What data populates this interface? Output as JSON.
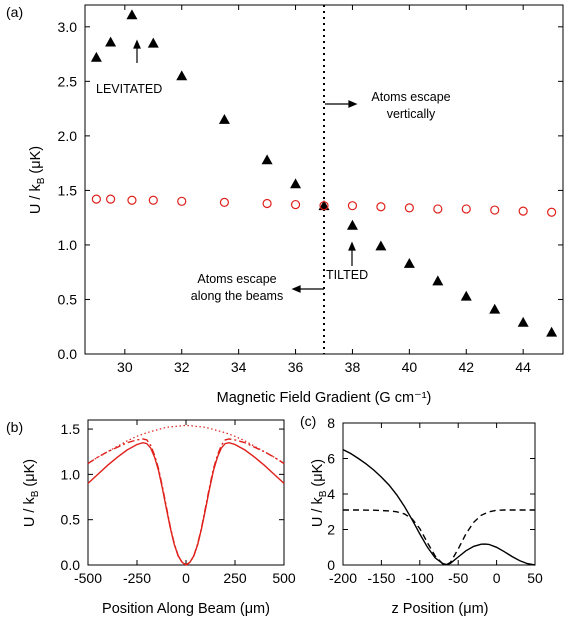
{
  "colors": {
    "triangle": "#000000",
    "circle": "#e0201b",
    "curve": "#e0201b",
    "black": "#000000"
  },
  "chart_data": [
    {
      "panel": "(a)",
      "type": "scatter",
      "xlabel": "Magnetic Field Gradient (G cm⁻¹)",
      "ylabel_main": "U / k",
      "ylabel_sub": "B",
      "ylabel_unit": " (μK)",
      "xlim": [
        28.6,
        45.4
      ],
      "ylim": [
        0,
        3.2
      ],
      "xticks": [
        30,
        32,
        34,
        36,
        38,
        40,
        42,
        44
      ],
      "xtick_labels": [
        "30",
        "32",
        "34",
        "36",
        "38",
        "40",
        "42",
        "44"
      ],
      "yticks": [
        0,
        0.5,
        1,
        1.5,
        2,
        2.5,
        3
      ],
      "ytick_labels": [
        "0.0",
        "0.5",
        "1.0",
        "1.5",
        "2.0",
        "2.5",
        "3.0"
      ],
      "vline_x": 37,
      "series": [
        {
          "marker": "triangle",
          "x": [
            29,
            29.5,
            30.25,
            31,
            32,
            33.5,
            35,
            36,
            37,
            38,
            39,
            40,
            41,
            42,
            43,
            44,
            45
          ],
          "y": [
            2.72,
            2.86,
            3.11,
            2.85,
            2.55,
            2.15,
            1.78,
            1.56,
            1.36,
            1.18,
            0.99,
            0.83,
            0.67,
            0.53,
            0.41,
            0.29,
            0.2
          ]
        },
        {
          "marker": "open-circle",
          "x": [
            29,
            29.5,
            30.25,
            31,
            32,
            33.5,
            35,
            36,
            37,
            38,
            39,
            40,
            41,
            42,
            43,
            44,
            45
          ],
          "y": [
            1.42,
            1.42,
            1.41,
            1.41,
            1.4,
            1.39,
            1.38,
            1.37,
            1.36,
            1.36,
            1.35,
            1.34,
            1.33,
            1.33,
            1.32,
            1.31,
            1.3
          ]
        }
      ],
      "annotations": {
        "levitated": "LEVITATED",
        "tilted": "TILTED",
        "escape_vert_1": "Atoms escape",
        "escape_vert_2": "vertically",
        "escape_beam_1": "Atoms escape",
        "escape_beam_2": "along the beams"
      }
    },
    {
      "panel": "(b)",
      "type": "line",
      "xlabel": "Position Along Beam (μm)",
      "ylabel_main": "U / k",
      "ylabel_sub": "B",
      "ylabel_unit": " (μK)",
      "xlim": [
        -500,
        500
      ],
      "ylim": [
        0,
        1.6
      ],
      "xticks": [
        -500,
        -250,
        0,
        250,
        500
      ],
      "xtick_labels": [
        "-500",
        "-250",
        "0",
        "250",
        "500"
      ],
      "yticks": [
        0,
        0.5,
        1,
        1.5
      ],
      "ytick_labels": [
        "0.0",
        "0.5",
        "1.0",
        "1.5"
      ],
      "series": [
        {
          "style": "solid",
          "x": [
            -500,
            -450,
            -400,
            -350,
            -300,
            -250,
            -220,
            -200,
            -180,
            -160,
            -140,
            -120,
            -100,
            -80,
            -60,
            -40,
            -20,
            0,
            20,
            40,
            60,
            80,
            100,
            120,
            140,
            160,
            180,
            200,
            220,
            250,
            300,
            350,
            400,
            450,
            500
          ],
          "y": [
            0.9,
            1.0,
            1.1,
            1.19,
            1.27,
            1.33,
            1.35,
            1.34,
            1.29,
            1.19,
            1.04,
            0.84,
            0.62,
            0.41,
            0.23,
            0.1,
            0.03,
            0.0,
            0.03,
            0.1,
            0.23,
            0.41,
            0.62,
            0.84,
            1.04,
            1.19,
            1.29,
            1.34,
            1.35,
            1.33,
            1.27,
            1.19,
            1.1,
            1.0,
            0.9
          ]
        },
        {
          "style": "dashdot",
          "x": [
            -500,
            -450,
            -400,
            -350,
            -300,
            -250,
            -220,
            -200,
            -180,
            -160,
            -140,
            -120,
            -100,
            -80,
            -60,
            -40,
            -20,
            0,
            20,
            40,
            60,
            80,
            100,
            120,
            140,
            160,
            180,
            200,
            220,
            250,
            300,
            350,
            400,
            450,
            500
          ],
          "y": [
            1.12,
            1.19,
            1.25,
            1.3,
            1.35,
            1.38,
            1.39,
            1.38,
            1.32,
            1.21,
            1.06,
            0.86,
            0.64,
            0.42,
            0.24,
            0.1,
            0.03,
            0.0,
            0.03,
            0.1,
            0.24,
            0.42,
            0.64,
            0.86,
            1.06,
            1.21,
            1.32,
            1.38,
            1.39,
            1.38,
            1.35,
            1.3,
            1.25,
            1.19,
            1.12
          ]
        },
        {
          "style": "dotted",
          "x": [
            -500,
            -450,
            -400,
            -350,
            -300,
            -250,
            -200,
            -150,
            -100,
            -50,
            0,
            50,
            100,
            150,
            200,
            250,
            300,
            350,
            400,
            450,
            500
          ],
          "y": [
            1.12,
            1.19,
            1.25,
            1.31,
            1.37,
            1.42,
            1.46,
            1.49,
            1.52,
            1.53,
            1.54,
            1.53,
            1.52,
            1.49,
            1.46,
            1.42,
            1.37,
            1.31,
            1.25,
            1.19,
            1.12
          ]
        }
      ]
    },
    {
      "panel": "(c)",
      "type": "line",
      "xlabel": "z Position (μm)",
      "ylabel_main": "U / k",
      "ylabel_sub": "B",
      "ylabel_unit": " (μK)",
      "xlim": [
        -200,
        50
      ],
      "ylim": [
        0,
        8
      ],
      "xticks": [
        -200,
        -150,
        -100,
        -50,
        0,
        50
      ],
      "xtick_labels": [
        "-200",
        "-150",
        "-100",
        "-50",
        "0",
        "50"
      ],
      "yticks": [
        0,
        2,
        4,
        6,
        8
      ],
      "ytick_labels": [
        "0",
        "2",
        "4",
        "6",
        "8"
      ],
      "series": [
        {
          "style": "solid",
          "x": [
            -200,
            -190,
            -180,
            -170,
            -160,
            -150,
            -140,
            -130,
            -120,
            -110,
            -100,
            -90,
            -80,
            -70,
            -65,
            -60,
            -50,
            -40,
            -30,
            -20,
            -15,
            -10,
            0,
            10,
            20,
            30,
            40,
            50
          ],
          "y": [
            6.5,
            6.28,
            6.0,
            5.7,
            5.35,
            4.95,
            4.5,
            3.95,
            3.3,
            2.55,
            1.75,
            1.0,
            0.4,
            0.08,
            0.02,
            0.1,
            0.45,
            0.8,
            1.05,
            1.17,
            1.18,
            1.16,
            1.0,
            0.75,
            0.48,
            0.25,
            0.08,
            0.0
          ]
        },
        {
          "style": "dashed",
          "x": [
            -200,
            -180,
            -160,
            -140,
            -130,
            -120,
            -110,
            -100,
            -90,
            -80,
            -70,
            -65,
            -60,
            -50,
            -40,
            -30,
            -20,
            -10,
            0,
            10,
            20,
            30,
            40,
            50
          ],
          "y": [
            3.1,
            3.1,
            3.09,
            3.05,
            3.0,
            2.88,
            2.6,
            2.05,
            1.25,
            0.5,
            0.06,
            0.02,
            0.15,
            0.9,
            1.75,
            2.4,
            2.8,
            3.0,
            3.08,
            3.1,
            3.1,
            3.1,
            3.1,
            3.1
          ]
        }
      ]
    }
  ]
}
